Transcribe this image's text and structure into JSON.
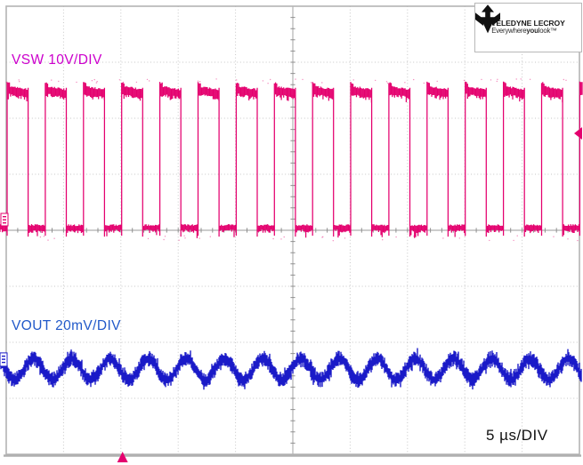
{
  "scope": {
    "vsw_label": "VSW 10V/DIV",
    "vout_label": "VOUT 20mV/DIV",
    "timebase_label": "5 µs/DIV"
  },
  "logo": {
    "brand": "TELEDYNE LECROY",
    "tagline_pre": "Everywhere",
    "tagline_bold": "you",
    "tagline_post": "look™"
  },
  "colors": {
    "vsw_trace": "#e4006e",
    "vsw_label": "#cc00cc",
    "vout_trace": "#1a1ac8",
    "vout_label": "#2159c9",
    "timebase_text": "#111111",
    "grid_dots": "#c6c6c6",
    "axis": "#9a9a9a",
    "border": "#b4b4b4",
    "trigger_marker": "#e4006e"
  },
  "chart_data": {
    "type": "line",
    "instrument": "oscilloscope",
    "title": "",
    "timebase": {
      "label": "5 µs/DIV",
      "us_per_div": 5
    },
    "grid": {
      "x_divisions": 10,
      "y_divisions": 8,
      "minor_ticks_per_division": 5,
      "style": "dotted"
    },
    "series": [
      {
        "name": "VSW",
        "label": "VSW 10V/DIV",
        "scale": "10V/DIV",
        "shape": "square",
        "color": "#e4006e",
        "high_level_div": 2.48,
        "low_level_div": 0.03,
        "period_us": 3.33,
        "duty_cycle": 0.55,
        "first_edge_us": 0.08,
        "approx_frequency_khz": 300,
        "overshoot": true
      },
      {
        "name": "VOUT",
        "label": "VOUT 20mV/DIV",
        "scale": "20mV/DIV",
        "shape": "sine-ripple",
        "color": "#1a1ac8",
        "center_div": -2.48,
        "amplitude_pp_div": 0.38,
        "period_us": 3.33,
        "peak_at_us": 25.7,
        "noise_band_div": 0.2
      }
    ],
    "markers": {
      "trigger_level": {
        "edge": "right",
        "y_div": 1.73,
        "color": "#e4006e"
      },
      "trigger_position": {
        "edge": "bottom",
        "x_div": -2.97,
        "color": "#e4006e"
      },
      "vsw_zero": {
        "edge": "left",
        "y_div": 0.19,
        "color": "#e4006e"
      },
      "vout_zero": {
        "edge": "left",
        "y_div": -2.3,
        "color": "#1a1ac8"
      }
    }
  }
}
